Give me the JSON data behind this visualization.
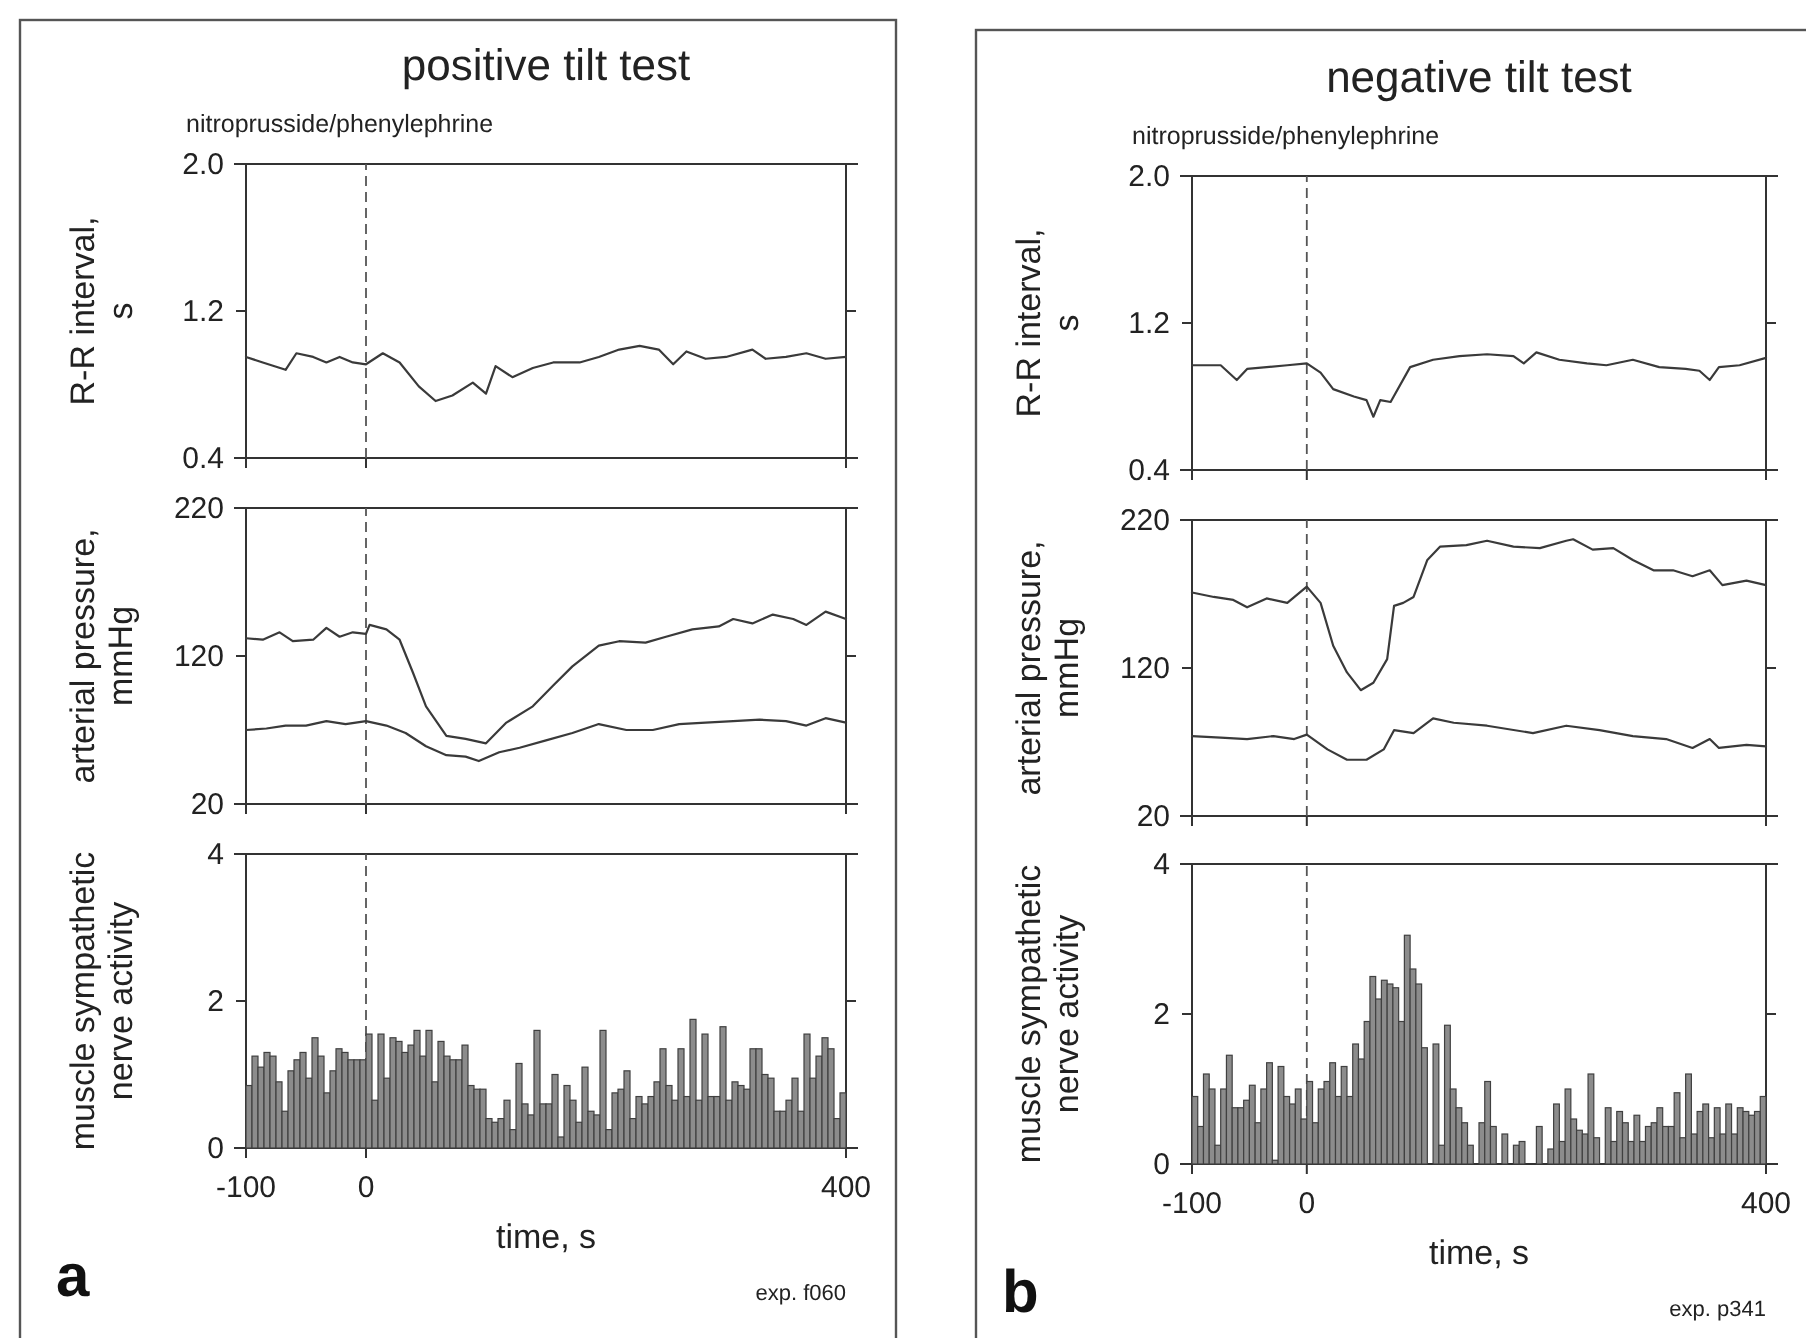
{
  "chart_data": [
    {
      "type": "line",
      "title": "positive tilt test",
      "subtitle": "nitroprusside/phenylephrine",
      "ylabel": "R-R interval, s",
      "xlim": [
        -100,
        400
      ],
      "xticks": [
        -100,
        0,
        400
      ],
      "ylim": [
        0.4,
        2.0
      ],
      "yticks": [
        0.4,
        1.2,
        {
          "value": 2,
          "label": "2.0"
        }
      ],
      "tick_labels": "y",
      "ref_lines": [
        {
          "axis": "x",
          "value": 0,
          "line_style": "dashed"
        }
      ],
      "series": [
        {
          "color": "#3a3a3a",
          "x": [
            -100,
            -86,
            -67,
            -58,
            -44,
            -33,
            -22,
            -11,
            0,
            14,
            28,
            44,
            58,
            72,
            89,
            100,
            108,
            122,
            139,
            156,
            178,
            194,
            211,
            228,
            244,
            256,
            267,
            283,
            300,
            322,
            333,
            350,
            367,
            383,
            400
          ],
          "values": [
            0.95,
            0.92,
            0.88,
            0.97,
            0.95,
            0.92,
            0.95,
            0.92,
            0.91,
            0.97,
            0.92,
            0.79,
            0.71,
            0.74,
            0.81,
            0.75,
            0.9,
            0.84,
            0.89,
            0.92,
            0.92,
            0.95,
            0.99,
            1.01,
            0.99,
            0.91,
            0.98,
            0.94,
            0.95,
            0.99,
            0.94,
            0.95,
            0.97,
            0.94,
            0.95
          ]
        }
      ]
    },
    {
      "type": "line",
      "ylabel": "arterial pressure, mmHg",
      "xlim": [
        -100,
        400
      ],
      "xticks": [
        -100,
        0,
        400
      ],
      "ylim": [
        20,
        220
      ],
      "yticks": [
        20,
        120,
        220
      ],
      "tick_labels": "y",
      "ref_lines": [
        {
          "axis": "x",
          "value": 0,
          "line_style": "dashed"
        }
      ],
      "series": [
        {
          "color": "#3a3a3a",
          "x": [
            -100,
            -86,
            -72,
            -61,
            -44,
            -33,
            -22,
            -11,
            0,
            3,
            17,
            28,
            39,
            50,
            67,
            83,
            100,
            117,
            139,
            156,
            172,
            194,
            211,
            233,
            250,
            272,
            294,
            306,
            322,
            339,
            356,
            367,
            383,
            400
          ],
          "values": [
            132,
            131,
            136,
            130,
            131,
            139,
            133,
            136,
            135,
            141,
            138,
            131,
            109,
            86,
            66,
            64,
            61,
            75,
            86,
            100,
            113,
            127,
            130,
            129,
            133,
            138,
            140,
            145,
            142,
            148,
            145,
            141,
            150,
            145
          ]
        },
        {
          "color": "#3a3a3a",
          "x": [
            -100,
            -83,
            -67,
            -50,
            -33,
            -17,
            0,
            17,
            33,
            50,
            67,
            83,
            94,
            111,
            128,
            150,
            172,
            194,
            217,
            239,
            261,
            283,
            306,
            328,
            350,
            367,
            383,
            400
          ],
          "values": [
            70,
            71,
            73,
            73,
            76,
            74,
            76,
            73,
            68,
            59,
            53,
            52,
            49,
            55,
            58,
            63,
            68,
            74,
            70,
            70,
            74,
            75,
            76,
            77,
            76,
            73,
            78,
            75
          ]
        }
      ]
    },
    {
      "type": "histogram",
      "xlabel": "time, s",
      "ylabel": "muscle sympathetic nerve activity",
      "xlim": [
        -100,
        400
      ],
      "xticks": [
        -100,
        0,
        400
      ],
      "ylim": [
        0,
        4
      ],
      "yticks": [
        0,
        2,
        4
      ],
      "ref_lines": [
        {
          "axis": "x",
          "value": 0,
          "line_style": "dashed"
        }
      ],
      "annotations": [
        "a",
        "exp. f060"
      ],
      "color": "#8c8c8c",
      "bins": [
        -100,
        -95,
        -90,
        -85,
        -80,
        -75,
        -70,
        -65,
        -60,
        -55,
        -50,
        -45,
        -40,
        -35,
        -30,
        -25,
        -20,
        -15,
        -10,
        -5,
        0,
        5,
        10,
        15,
        20,
        25,
        30,
        35,
        40,
        45,
        50,
        55,
        60,
        65,
        70,
        75,
        80,
        85,
        90,
        95,
        100,
        105,
        110,
        115,
        120,
        125,
        130,
        135,
        140,
        145,
        150,
        155,
        160,
        165,
        170,
        175,
        180,
        185,
        190,
        195,
        200,
        205,
        210,
        215,
        220,
        225,
        230,
        235,
        240,
        245,
        250,
        255,
        260,
        265,
        270,
        275,
        280,
        285,
        290,
        295,
        300,
        305,
        310,
        315,
        320,
        325,
        330,
        335,
        340,
        345,
        350,
        355,
        360,
        365,
        370,
        375,
        380,
        385,
        390,
        395,
        400
      ],
      "values": [
        0.85,
        1.25,
        1.1,
        1.3,
        1.25,
        0.9,
        0.5,
        1.05,
        1.2,
        1.3,
        0.95,
        1.5,
        1.25,
        0.75,
        1.05,
        1.35,
        1.3,
        1.2,
        1.2,
        1.2,
        1.55,
        0.65,
        1.55,
        0.95,
        1.5,
        1.45,
        1.3,
        1.4,
        1.6,
        1.25,
        1.6,
        0.9,
        1.45,
        1.25,
        1.2,
        1.2,
        1.4,
        0.85,
        0.8,
        0.8,
        0.4,
        0.35,
        0.4,
        0.65,
        0.25,
        1.15,
        0.6,
        0.45,
        1.6,
        0.6,
        0.6,
        1.0,
        0.15,
        0.85,
        0.65,
        0.35,
        1.1,
        0.5,
        0.45,
        1.6,
        0.25,
        0.75,
        0.8,
        1.05,
        0.4,
        0.7,
        0.6,
        0.7,
        0.9,
        1.35,
        0.85,
        0.65,
        1.35,
        0.7,
        1.75,
        0.65,
        1.55,
        0.7,
        0.7,
        1.65,
        0.65,
        0.9,
        0.85,
        0.8,
        1.35,
        1.35,
        1.0,
        0.95,
        0.5,
        0.5,
        0.65,
        0.95,
        0.5,
        1.55,
        0.95,
        1.25,
        1.5,
        1.35,
        0.4,
        0.75
      ]
    },
    {
      "type": "line",
      "title": "negative tilt test",
      "subtitle": "nitroprusside/phenylephrine",
      "ylabel": "R-R interval, s",
      "xlim": [
        -100,
        400
      ],
      "xticks": [
        -100,
        0,
        400
      ],
      "ylim": [
        0.4,
        2.0
      ],
      "yticks": [
        0.4,
        1.2,
        {
          "value": 2,
          "label": "2.0"
        }
      ],
      "tick_labels": "y",
      "ref_lines": [
        {
          "axis": "x",
          "value": 0,
          "line_style": "dashed"
        }
      ],
      "series": [
        {
          "color": "#3a3a3a",
          "x": [
            -100,
            -75,
            -61,
            -52,
            -35,
            -17,
            0,
            12,
            23,
            41,
            52,
            58,
            64,
            73,
            90,
            110,
            133,
            157,
            180,
            189,
            200,
            220,
            244,
            261,
            284,
            307,
            330,
            342,
            351,
            359,
            377,
            400
          ],
          "values": [
            0.97,
            0.97,
            0.89,
            0.95,
            0.96,
            0.97,
            0.98,
            0.93,
            0.84,
            0.8,
            0.78,
            0.69,
            0.78,
            0.77,
            0.96,
            1.0,
            1.02,
            1.03,
            1.02,
            0.98,
            1.04,
            1.0,
            0.98,
            0.97,
            1.0,
            0.96,
            0.95,
            0.94,
            0.89,
            0.96,
            0.97,
            1.01
          ]
        }
      ]
    },
    {
      "type": "line",
      "ylabel": "arterial pressure, mmHg",
      "xlim": [
        -100,
        400
      ],
      "xticks": [
        -100,
        0,
        400
      ],
      "ylim": [
        20,
        220
      ],
      "yticks": [
        20,
        120,
        220
      ],
      "tick_labels": "y",
      "ref_lines": [
        {
          "axis": "x",
          "value": 0,
          "line_style": "dashed"
        }
      ],
      "series": [
        {
          "color": "#3a3a3a",
          "x": [
            -100,
            -81,
            -64,
            -52,
            -35,
            -17,
            0,
            12,
            23,
            35,
            47,
            58,
            70,
            76,
            84,
            93,
            105,
            116,
            139,
            157,
            180,
            203,
            226,
            232,
            249,
            267,
            284,
            302,
            319,
            336,
            351,
            362,
            383,
            400
          ],
          "values": [
            171,
            168,
            166,
            161,
            167,
            164,
            175,
            164,
            135,
            117,
            105,
            110,
            126,
            162,
            164,
            168,
            193,
            202,
            203,
            206,
            202,
            201,
            206,
            207,
            200,
            201,
            193,
            186,
            186,
            182,
            186,
            176,
            179,
            176
          ]
        },
        {
          "color": "#3a3a3a",
          "x": [
            -100,
            -75,
            -52,
            -29,
            -11,
            0,
            18,
            35,
            52,
            67,
            76,
            93,
            110,
            128,
            157,
            197,
            226,
            255,
            284,
            313,
            336,
            351,
            359,
            383,
            400
          ],
          "values": [
            74,
            73,
            72,
            74,
            72,
            75,
            65,
            58,
            58,
            65,
            78,
            76,
            86,
            83,
            81,
            76,
            81,
            78,
            74,
            72,
            66,
            72,
            66,
            68,
            67
          ]
        }
      ]
    },
    {
      "type": "histogram",
      "xlabel": "time, s",
      "ylabel": "muscle sympathetic nerve activity",
      "xlim": [
        -100,
        400
      ],
      "xticks": [
        -100,
        0,
        400
      ],
      "ylim": [
        0,
        4
      ],
      "yticks": [
        0,
        2,
        4
      ],
      "ref_lines": [
        {
          "axis": "x",
          "value": 0,
          "line_style": "dashed"
        }
      ],
      "annotations": [
        "b",
        "exp. p341"
      ],
      "color": "#8c8c8c",
      "bins": [
        -100,
        -95,
        -90,
        -85,
        -80,
        -75,
        -70,
        -65,
        -60,
        -55,
        -50,
        -45,
        -40,
        -35,
        -30,
        -25,
        -20,
        -15,
        -10,
        -5,
        0,
        5,
        10,
        15,
        20,
        25,
        30,
        35,
        40,
        45,
        50,
        55,
        60,
        65,
        70,
        75,
        80,
        85,
        90,
        95,
        100,
        105,
        110,
        115,
        120,
        125,
        130,
        135,
        140,
        145,
        150,
        155,
        160,
        165,
        170,
        175,
        180,
        185,
        190,
        195,
        200,
        205,
        210,
        215,
        220,
        225,
        230,
        235,
        240,
        245,
        250,
        255,
        260,
        265,
        270,
        275,
        280,
        285,
        290,
        295,
        300,
        305,
        310,
        315,
        320,
        325,
        330,
        335,
        340,
        345,
        350,
        355,
        360,
        365,
        370,
        375,
        380,
        385,
        390,
        395,
        400
      ],
      "values": [
        0.9,
        0.5,
        1.2,
        1.0,
        0.25,
        1.0,
        1.45,
        0.75,
        0.75,
        0.85,
        1.05,
        0.55,
        1.0,
        1.35,
        0.05,
        1.3,
        0.9,
        0.8,
        1.0,
        0.6,
        1.1,
        0.55,
        1.0,
        1.1,
        1.35,
        0.9,
        1.3,
        0.9,
        1.6,
        1.4,
        1.9,
        2.5,
        2.2,
        2.45,
        2.4,
        2.35,
        1.9,
        3.05,
        2.6,
        2.4,
        1.55,
        0,
        1.6,
        0.25,
        1.85,
        1.0,
        0.75,
        0.55,
        0.25,
        0,
        0.55,
        1.1,
        0.5,
        0,
        0.4,
        0,
        0.25,
        0.3,
        0,
        0,
        0.5,
        0,
        0.2,
        0.8,
        0.3,
        1.0,
        0.6,
        0.45,
        0.4,
        1.2,
        0.35,
        0,
        0.75,
        0.3,
        0.7,
        0.55,
        0.3,
        0.65,
        0.3,
        0.5,
        0.55,
        0.75,
        0.5,
        0.5,
        0.95,
        0.35,
        1.2,
        0.4,
        0.7,
        0.8,
        0.35,
        0.75,
        0.4,
        0.8,
        0.4,
        0.75,
        0.7,
        0.65,
        0.7,
        0.9
      ]
    }
  ]
}
